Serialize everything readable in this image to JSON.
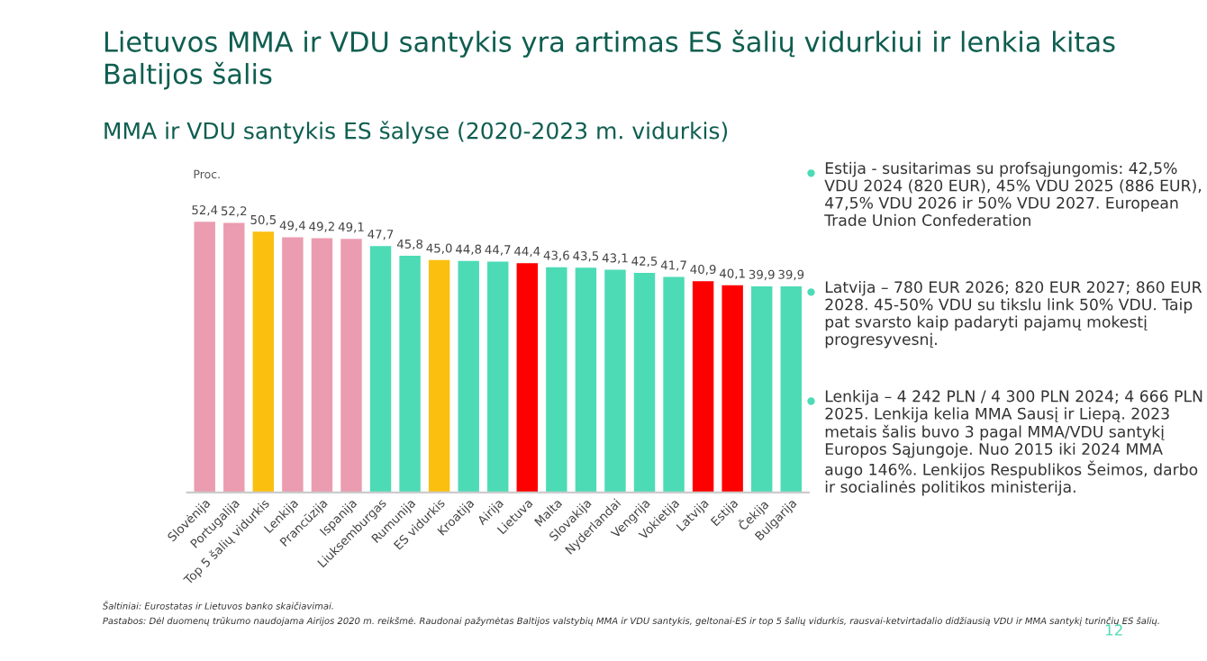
{
  "chart_data": {
    "type": "bar",
    "title": "Lietuvos MMA ir VDU santykis yra artimas ES šalių vidurkiui ir lenkia kitas Baltijos šalis",
    "subtitle": "MMA ir VDU santykis ES šalyse (2020-2023 m. vidurkis)",
    "ylabel": "Proc.",
    "categories": [
      "Slovėnija",
      "Portugalija",
      "Top 5 šalių vidurkis",
      "Lenkija",
      "Prancūzija",
      "Ispanija",
      "Liuksemburgas",
      "Rumunija",
      "ES vidurkis",
      "Kroatija",
      "Airija",
      "Lietuva",
      "Malta",
      "Slovakija",
      "Nyderlandai",
      "Vengrija",
      "Vokietija",
      "Latvija",
      "Estija",
      "Čekija",
      "Bulgarija"
    ],
    "values": [
      52.4,
      52.2,
      50.5,
      49.4,
      49.2,
      49.1,
      47.7,
      45.8,
      45.0,
      44.8,
      44.7,
      44.4,
      43.6,
      43.5,
      43.1,
      42.5,
      41.7,
      40.9,
      40.1,
      39.9,
      39.9
    ],
    "value_labels": [
      "52,4",
      "52,2",
      "50,5",
      "49,4",
      "49,2",
      "49,1",
      "47,7",
      "45,8",
      "45,0",
      "44,8",
      "44,7",
      "44,4",
      "43,6",
      "43,5",
      "43,1",
      "42,5",
      "41,7",
      "40,9",
      "40,1",
      "39,9",
      "39,9"
    ],
    "colors": [
      "#eb9cb0",
      "#eb9cb0",
      "#fbbf10",
      "#eb9cb0",
      "#eb9cb0",
      "#eb9cb0",
      "#4ddbb6",
      "#4ddbb6",
      "#fbbf10",
      "#4ddbb6",
      "#4ddbb6",
      "#ff0000",
      "#4ddbb6",
      "#4ddbb6",
      "#4ddbb6",
      "#4ddbb6",
      "#4ddbb6",
      "#ff0000",
      "#ff0000",
      "#4ddbb6",
      "#4ddbb6"
    ],
    "grid": false,
    "legend": false,
    "annotations": [
      "Estija - susitarimas su profsąjungomis: 42,5% VDU 2024 (820 EUR), 45% VDU 2025 (886 EUR), 47,5% VDU 2026 ir 50% VDU 2027. European Trade Union Confederation",
      "Latvija – 780 EUR 2026; 820 EUR 2027; 860 EUR 2028. 45-50% VDU su tikslu link 50% VDU. Taip pat svarsto kaip padaryti pajamų mokestį progresyvesnį.",
      "Lenkija – 4 242 PLN / 4 300 PLN 2024; 4 666 PLN 2025. Lenkija kelia MMA Sausį ir Liepą. 2023 metais šalis buvo 3 pagal MMA/VDU santykį Europos Sąjungoje. Nuo 2015 iki 2024 MMA augo 146%. Lenkijos Respublikos Šeimos, darbo ir socialinės politikos ministerija.",
      "Šaltiniai: Eurostatas ir Lietuvos banko skaičiavimai.",
      "Pastabos: Dėl duomenų trūkumo naudojama Airijos 2020 m. reikšmė. Raudonai pažymėtas Baltijos valstybių MMA ir VDU santykis, geltonai-ES ir top 5 šalių vidurkis, rausvai-ketvirtadalio didžiausią VDU ir MMA santykį turinčių ES šalių.",
      "12"
    ]
  }
}
